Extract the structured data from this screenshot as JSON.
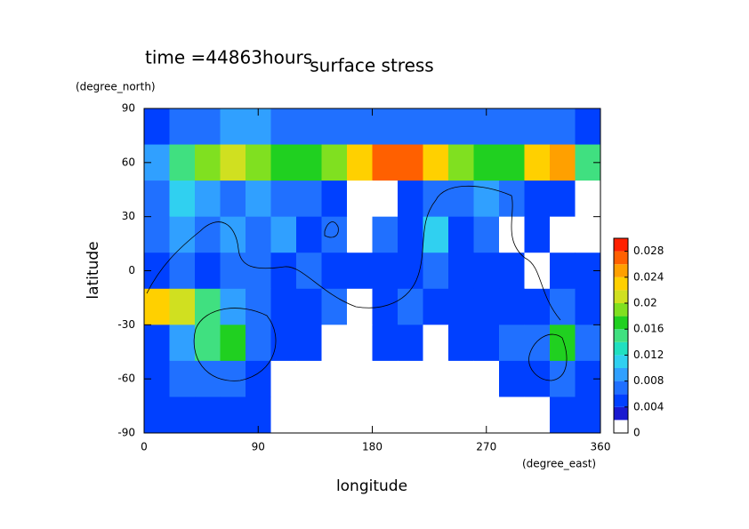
{
  "chart_data": {
    "type": "contour",
    "title": "time =44863hours",
    "subtitle": "surface stress",
    "xlabel": "longitude",
    "xunit": "(degree_east)",
    "ylabel": "latitude",
    "yunit": "(degree_north)",
    "x": [
      10,
      30,
      50,
      70,
      90,
      110,
      130,
      150,
      170,
      190,
      210,
      230,
      250,
      270,
      290,
      310,
      330,
      350
    ],
    "y": [
      80,
      60,
      40,
      20,
      0,
      -20,
      -40,
      -60,
      -80
    ],
    "z": [
      [
        0.005,
        0.006,
        0.006,
        0.008,
        0.008,
        0.006,
        0.006,
        0.006,
        0.006,
        0.006,
        0.006,
        0.006,
        0.006,
        0.006,
        0.006,
        0.006,
        0.006,
        0.005
      ],
      [
        0.008,
        0.014,
        0.018,
        0.02,
        0.018,
        0.016,
        0.016,
        0.018,
        0.022,
        0.026,
        0.026,
        0.022,
        0.018,
        0.016,
        0.016,
        0.022,
        0.024,
        0.014
      ],
      [
        0.006,
        0.01,
        0.008,
        0.006,
        0.008,
        0.006,
        0.006,
        0.004,
        0.001,
        0.001,
        0.004,
        0.006,
        0.006,
        0.008,
        0.006,
        0.004,
        0.004,
        0.001
      ],
      [
        0.006,
        0.008,
        0.006,
        0.008,
        0.006,
        0.008,
        0.004,
        0.006,
        0.001,
        0.006,
        0.004,
        0.01,
        0.004,
        0.006,
        0.001,
        0.004,
        0.001,
        0.001
      ],
      [
        0.004,
        0.006,
        0.004,
        0.006,
        0.006,
        0.004,
        0.006,
        0.004,
        0.004,
        0.004,
        0.004,
        0.006,
        0.004,
        0.004,
        0.004,
        0.001,
        0.004,
        0.004
      ],
      [
        0.022,
        0.02,
        0.014,
        0.008,
        0.006,
        0.004,
        0.004,
        0.006,
        0.001,
        0.004,
        0.006,
        0.004,
        0.004,
        0.004,
        0.004,
        0.004,
        0.006,
        0.004
      ],
      [
        0.004,
        0.008,
        0.014,
        0.016,
        0.006,
        0.004,
        0.004,
        0.001,
        0.001,
        0.004,
        0.004,
        0.001,
        0.004,
        0.004,
        0.006,
        0.006,
        0.016,
        0.006
      ],
      [
        0.004,
        0.006,
        0.006,
        0.006,
        0.004,
        0.001,
        0.001,
        0.001,
        0.001,
        0.001,
        0.001,
        0.001,
        0.001,
        0.001,
        0.004,
        0.004,
        0.006,
        0.004
      ],
      [
        0.004,
        0.004,
        0.004,
        0.004,
        0.004,
        0.001,
        0.001,
        0.001,
        0.001,
        0.001,
        0.001,
        0.001,
        0.001,
        0.001,
        0.001,
        0.001,
        0.004,
        0.004
      ]
    ],
    "xlim": [
      0,
      360
    ],
    "xticks": [
      0,
      90,
      180,
      270,
      360
    ],
    "ylim": [
      -90,
      90
    ],
    "yticks": [
      -90,
      -60,
      -30,
      0,
      30,
      60,
      90
    ],
    "levels": [
      0,
      0.002,
      0.004,
      0.006,
      0.008,
      0.01,
      0.012,
      0.014,
      0.016,
      0.018,
      0.02,
      0.022,
      0.024,
      0.026,
      0.028,
      0.03
    ],
    "colors": [
      "#ffffff",
      "#1a1ad0",
      "#0040ff",
      "#2070ff",
      "#30a0ff",
      "#30d0f0",
      "#20e0c0",
      "#40e080",
      "#20d020",
      "#80e020",
      "#d0e020",
      "#ffd000",
      "#ffa000",
      "#ff6000",
      "#ff2000"
    ],
    "cbticks": [
      0,
      0.004,
      0.008,
      0.012,
      0.016,
      0.02,
      0.024,
      0.028
    ]
  }
}
